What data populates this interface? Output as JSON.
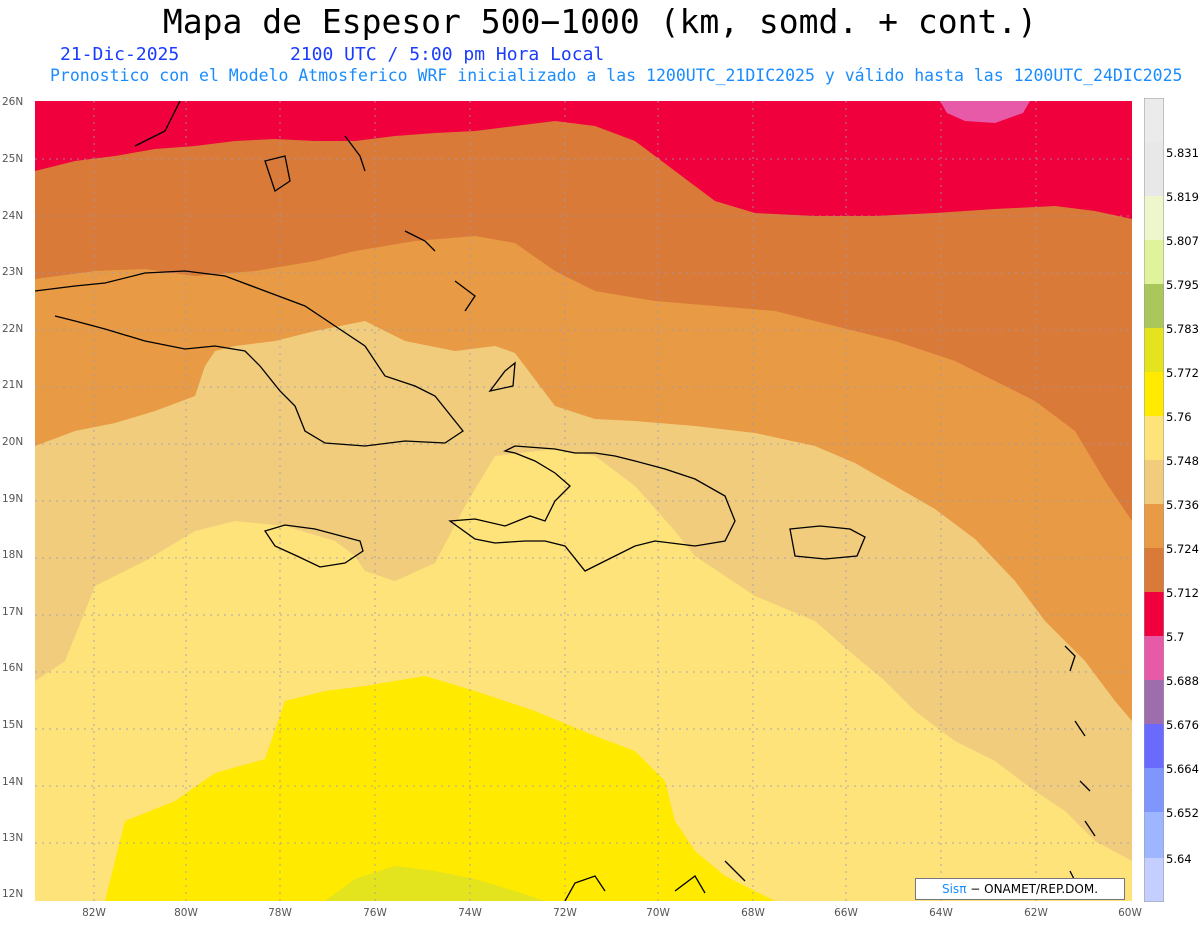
{
  "header": {
    "title": "Mapa de Espesor 500−1000 (km, somd. + cont.)",
    "date": "21-Dic-2025",
    "time": "2100 UTC / 5:00 pm Hora Local",
    "info": "Pronostico con el Modelo Atmosferico WRF inicializado a las 1200UTC_21DIC2025 y válido hasta las  1200UTC_24DIC2025"
  },
  "credit": {
    "logo": "Sisπ",
    "text": "− ONAMET/REP.DOM."
  },
  "legend": {
    "levels": [
      "5.64",
      "5.652",
      "5.664",
      "5.676",
      "5.688",
      "5.7",
      "5.712",
      "5.724",
      "5.736",
      "5.748",
      "5.76",
      "5.772",
      "5.783",
      "5.795",
      "5.807",
      "5.819",
      "5.831"
    ],
    "colors": [
      "#c4cfff",
      "#9eb6ff",
      "#7f96ff",
      "#6a6aff",
      "#9e6eac",
      "#e65aa8",
      "#f0003c",
      "#d97a38",
      "#e89a44",
      "#f0cc7c",
      "#fee27a",
      "#ffea00",
      "#e4e41e",
      "#aac75c",
      "#dff49a",
      "#eef6cc",
      "#e8e8e8",
      "#ebebeb"
    ]
  },
  "axes": {
    "lat_labels": [
      "26N",
      "25N",
      "24N",
      "23N",
      "22N",
      "21N",
      "20N",
      "19N",
      "18N",
      "17N",
      "16N",
      "15N",
      "14N",
      "13N",
      "12N"
    ],
    "lon_labels": [
      "82W",
      "80W",
      "78W",
      "76W",
      "74W",
      "72W",
      "70W",
      "68W",
      "66W",
      "64W",
      "62W",
      "60W"
    ]
  },
  "map": {
    "colors": {
      "c5700": "#f0003c",
      "c5688": "#e65aa8",
      "c5712": "#d97a38",
      "c5724": "#e89a44",
      "c5736": "#f0cc7c",
      "c5748": "#fee27a",
      "c5760": "#ffea00",
      "c5772": "#e4e41e",
      "coast": "#000000"
    }
  }
}
